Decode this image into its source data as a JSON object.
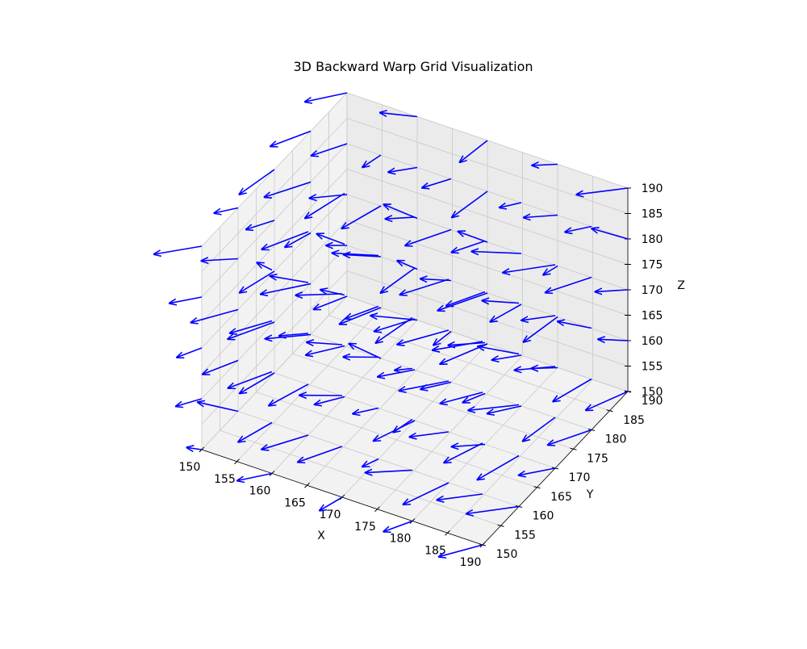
{
  "chart_data": {
    "type": "quiver3d",
    "title": "3D Backward Warp Grid Visualization",
    "xlabel": "X",
    "ylabel": "Y",
    "zlabel": "Z",
    "xlim": [
      150,
      190
    ],
    "ylim": [
      150,
      190
    ],
    "zlim": [
      150,
      190
    ],
    "x_ticks": [
      "150",
      "155",
      "160",
      "165",
      "170",
      "175",
      "180",
      "185",
      "190"
    ],
    "y_ticks": [
      "150",
      "155",
      "160",
      "165",
      "170",
      "175",
      "180",
      "185",
      "190"
    ],
    "z_ticks": [
      "150",
      "155",
      "160",
      "165",
      "170",
      "175",
      "180",
      "185",
      "190"
    ],
    "grid": true,
    "arrow_color": "#0000ff",
    "grid_points_per_axis": 5,
    "grid_spacing": 10,
    "arrow_length": 7
  }
}
